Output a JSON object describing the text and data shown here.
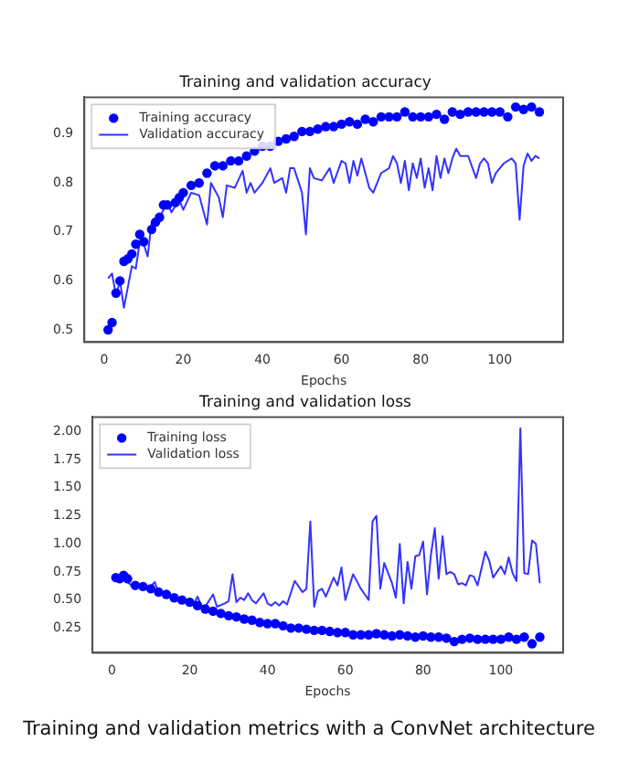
{
  "chart_data": [
    {
      "type": "line",
      "title": "Training and validation accuracy",
      "xlabel": "Epochs",
      "xlim": [
        -5,
        116
      ],
      "xticks": [
        0,
        20,
        40,
        60,
        80,
        100
      ],
      "ylim": [
        0.475,
        0.975
      ],
      "yticks": [
        {
          "value": 0.5,
          "label": "0.5"
        },
        {
          "value": 0.6,
          "label": "0.6"
        },
        {
          "value": 0.7,
          "label": "0.7"
        },
        {
          "value": 0.8,
          "label": "0.8"
        },
        {
          "value": 0.9,
          "label": "0.9"
        }
      ],
      "legend": "top left",
      "grid": false,
      "series": [
        {
          "name": "Training accuracy",
          "type": "scatter",
          "marker": "circle",
          "color": "#0000ff",
          "x": [
            1,
            2,
            3,
            4,
            5,
            6,
            7,
            8,
            9,
            10,
            12,
            13,
            14,
            15,
            16,
            18,
            19,
            20,
            22,
            24,
            26,
            28,
            30,
            32,
            34,
            36,
            38,
            40,
            42,
            44,
            46,
            48,
            50,
            52,
            54,
            56,
            58,
            60,
            62,
            64,
            66,
            68,
            70,
            72,
            74,
            76,
            78,
            80,
            82,
            84,
            86,
            88,
            90,
            92,
            94,
            96,
            98,
            100,
            102,
            104,
            106,
            108,
            110
          ],
          "values": [
            0.5,
            0.515,
            0.575,
            0.6,
            0.64,
            0.645,
            0.655,
            0.675,
            0.695,
            0.68,
            0.705,
            0.72,
            0.73,
            0.755,
            0.755,
            0.76,
            0.77,
            0.78,
            0.795,
            0.8,
            0.82,
            0.835,
            0.835,
            0.845,
            0.845,
            0.855,
            0.865,
            0.875,
            0.875,
            0.885,
            0.89,
            0.895,
            0.905,
            0.905,
            0.91,
            0.915,
            0.915,
            0.92,
            0.925,
            0.92,
            0.93,
            0.925,
            0.935,
            0.935,
            0.935,
            0.945,
            0.935,
            0.935,
            0.935,
            0.94,
            0.93,
            0.945,
            0.94,
            0.945,
            0.945,
            0.945,
            0.945,
            0.945,
            0.935,
            0.955,
            0.95,
            0.955,
            0.945
          ]
        },
        {
          "name": "Validation accuracy",
          "type": "line",
          "line_style": "solid",
          "color": "#3333ff",
          "x": [
            1,
            2,
            3,
            4,
            5,
            7,
            8,
            9,
            10,
            11,
            12,
            14,
            16,
            17,
            19,
            20,
            22,
            24,
            26,
            27,
            29,
            30,
            31,
            33,
            35,
            36,
            37,
            38,
            40,
            42,
            43,
            45,
            46,
            47,
            48,
            50,
            51,
            52,
            53,
            55,
            57,
            58,
            60,
            61,
            62,
            63,
            64,
            65,
            67,
            68,
            70,
            72,
            73,
            74,
            75,
            76,
            77,
            78,
            79,
            80,
            81,
            82,
            83,
            84,
            85,
            86,
            87,
            88,
            89,
            90,
            92,
            94,
            95,
            96,
            97,
            98,
            99,
            101,
            103,
            104,
            105,
            106,
            107,
            108,
            109,
            110
          ],
          "values": [
            0.605,
            0.615,
            0.57,
            0.6,
            0.545,
            0.63,
            0.625,
            0.68,
            0.675,
            0.65,
            0.72,
            0.73,
            0.76,
            0.74,
            0.765,
            0.745,
            0.78,
            0.775,
            0.715,
            0.8,
            0.77,
            0.73,
            0.795,
            0.79,
            0.825,
            0.78,
            0.8,
            0.78,
            0.8,
            0.83,
            0.8,
            0.81,
            0.78,
            0.83,
            0.83,
            0.78,
            0.695,
            0.83,
            0.81,
            0.805,
            0.83,
            0.8,
            0.845,
            0.84,
            0.8,
            0.845,
            0.815,
            0.85,
            0.79,
            0.78,
            0.82,
            0.83,
            0.855,
            0.84,
            0.8,
            0.845,
            0.785,
            0.84,
            0.81,
            0.85,
            0.79,
            0.83,
            0.785,
            0.855,
            0.81,
            0.85,
            0.82,
            0.85,
            0.87,
            0.855,
            0.855,
            0.81,
            0.84,
            0.85,
            0.84,
            0.8,
            0.82,
            0.84,
            0.85,
            0.84,
            0.725,
            0.835,
            0.86,
            0.845,
            0.855,
            0.85
          ]
        }
      ]
    },
    {
      "type": "line",
      "title": "Training and validation loss",
      "xlabel": "Epochs",
      "xlim": [
        -5,
        116
      ],
      "xticks": [
        0,
        20,
        40,
        60,
        80,
        100
      ],
      "ylim": [
        0.03,
        2.13
      ],
      "yticks": [
        {
          "value": 0.25,
          "label": "0.25"
        },
        {
          "value": 0.5,
          "label": "0.50"
        },
        {
          "value": 0.75,
          "label": "0.75"
        },
        {
          "value": 1,
          "label": "1.00"
        },
        {
          "value": 1.25,
          "label": "1.25"
        },
        {
          "value": 1.5,
          "label": "1.50"
        },
        {
          "value": 1.75,
          "label": "1.75"
        },
        {
          "value": 2,
          "label": "2.00"
        }
      ],
      "legend": "top left",
      "grid": false,
      "annotations": [
        "Training and validation metrics with a ConvNet architecture"
      ],
      "series": [
        {
          "name": "Training loss",
          "type": "scatter",
          "marker": "circle",
          "color": "#0000ff",
          "x": [
            1,
            2,
            3,
            4,
            6,
            8,
            10,
            12,
            14,
            16,
            18,
            20,
            22,
            24,
            26,
            28,
            30,
            32,
            34,
            36,
            38,
            40,
            42,
            44,
            46,
            48,
            50,
            52,
            54,
            56,
            58,
            60,
            62,
            64,
            66,
            68,
            70,
            72,
            74,
            76,
            78,
            80,
            82,
            84,
            86,
            88,
            90,
            92,
            94,
            96,
            98,
            100,
            102,
            104,
            106,
            108,
            110
          ],
          "values": [
            0.7,
            0.69,
            0.72,
            0.69,
            0.63,
            0.62,
            0.6,
            0.57,
            0.55,
            0.52,
            0.5,
            0.48,
            0.45,
            0.42,
            0.4,
            0.38,
            0.36,
            0.35,
            0.33,
            0.32,
            0.3,
            0.29,
            0.29,
            0.27,
            0.25,
            0.25,
            0.24,
            0.23,
            0.23,
            0.22,
            0.21,
            0.21,
            0.19,
            0.19,
            0.19,
            0.2,
            0.19,
            0.18,
            0.19,
            0.18,
            0.17,
            0.18,
            0.17,
            0.17,
            0.16,
            0.13,
            0.15,
            0.16,
            0.15,
            0.15,
            0.15,
            0.15,
            0.17,
            0.15,
            0.17,
            0.11,
            0.17
          ]
        },
        {
          "name": "Validation loss",
          "type": "line",
          "line_style": "solid",
          "color": "#3333ff",
          "x": [
            1,
            3,
            5,
            8,
            10,
            11,
            12,
            16,
            20,
            21,
            22,
            23,
            24,
            26,
            27,
            29,
            30,
            31,
            32,
            33,
            34,
            35,
            36,
            37,
            39,
            40,
            41,
            42,
            43,
            44,
            45,
            47,
            49,
            50,
            51,
            52,
            53,
            54,
            55,
            57,
            58,
            59,
            60,
            62,
            64,
            65,
            66,
            67,
            68,
            69,
            70,
            72,
            73,
            74,
            75,
            76,
            77,
            78,
            79,
            80,
            81,
            82,
            83,
            84,
            85,
            86,
            87,
            88,
            89,
            90,
            91,
            92,
            93,
            94,
            96,
            97,
            98,
            99,
            100,
            101,
            102,
            103,
            104,
            105,
            106,
            107,
            108,
            109,
            110
          ],
          "values": [
            0.7,
            0.69,
            0.63,
            0.61,
            0.62,
            0.66,
            0.57,
            0.52,
            0.47,
            0.46,
            0.53,
            0.45,
            0.44,
            0.55,
            0.44,
            0.47,
            0.49,
            0.73,
            0.48,
            0.52,
            0.5,
            0.56,
            0.5,
            0.47,
            0.56,
            0.47,
            0.45,
            0.48,
            0.45,
            0.49,
            0.46,
            0.67,
            0.57,
            0.6,
            1.2,
            0.44,
            0.58,
            0.6,
            0.53,
            0.7,
            0.63,
            0.79,
            0.5,
            0.73,
            0.6,
            0.55,
            0.5,
            1.2,
            1.25,
            0.6,
            0.83,
            0.65,
            0.52,
            1.0,
            0.47,
            0.84,
            0.6,
            0.89,
            0.9,
            1.02,
            0.55,
            0.9,
            1.14,
            0.69,
            1.07,
            0.73,
            0.75,
            0.73,
            0.64,
            0.65,
            0.63,
            0.72,
            0.71,
            0.63,
            0.93,
            0.85,
            0.7,
            0.75,
            0.8,
            0.73,
            0.88,
            0.74,
            0.67,
            2.03,
            0.74,
            0.73,
            1.03,
            1.0,
            0.65
          ]
        }
      ]
    }
  ]
}
